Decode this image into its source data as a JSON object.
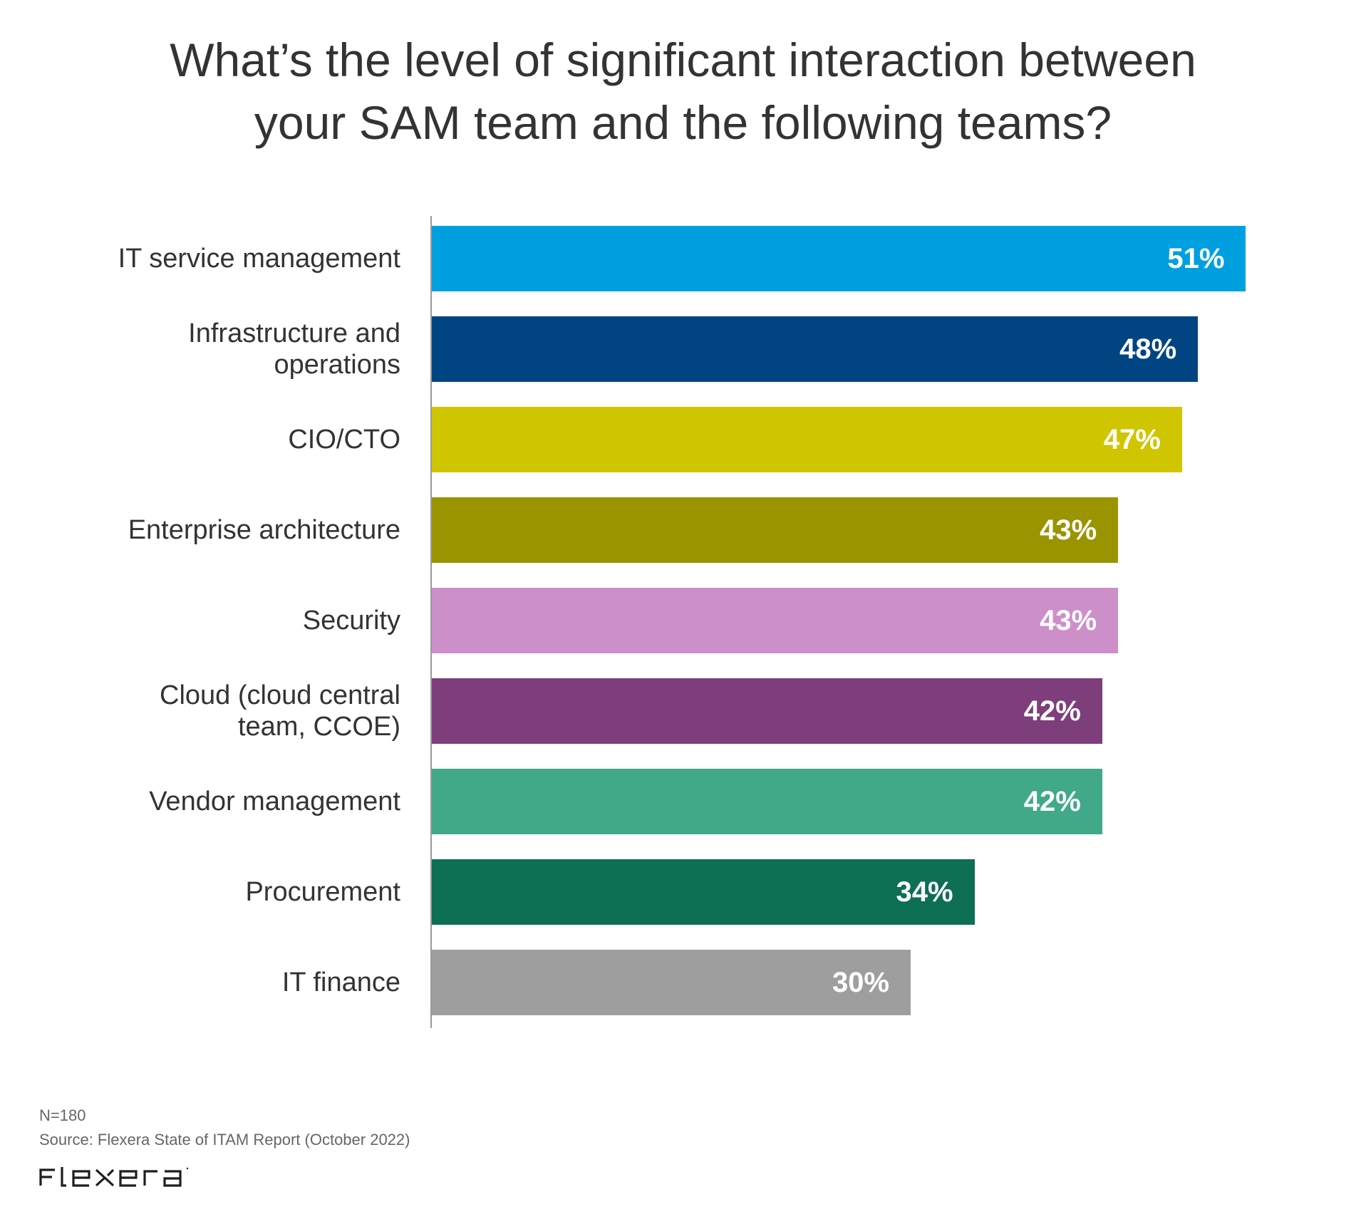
{
  "chart_data": {
    "type": "bar",
    "orientation": "horizontal",
    "title": "What’s the level of significant interaction between your SAM team and the following teams?",
    "title_lines": [
      "What’s the level of significant interaction between",
      "your SAM team and the following teams?"
    ],
    "xlabel": "",
    "ylabel": "",
    "xlim": [
      0,
      55
    ],
    "grid": false,
    "legend": "none",
    "value_suffix": "%",
    "categories": [
      {
        "label_lines": [
          "IT service management"
        ],
        "value": 51,
        "value_label": "51%",
        "color": "#00A0E0"
      },
      {
        "label_lines": [
          "Infrastructure and",
          "operations"
        ],
        "value": 48,
        "value_label": "48%",
        "color": "#004481"
      },
      {
        "label_lines": [
          "CIO/CTO"
        ],
        "value": 47,
        "value_label": "47%",
        "color": "#CFC500"
      },
      {
        "label_lines": [
          "Enterprise architecture"
        ],
        "value": 43,
        "value_label": "43%",
        "color": "#9A9400"
      },
      {
        "label_lines": [
          "Security"
        ],
        "value": 43,
        "value_label": "43%",
        "color": "#CC8FC9"
      },
      {
        "label_lines": [
          "Cloud (cloud central",
          "team, CCOE)"
        ],
        "value": 42,
        "value_label": "42%",
        "color": "#7E3E7C"
      },
      {
        "label_lines": [
          "Vendor management"
        ],
        "value": 42,
        "value_label": "42%",
        "color": "#41A88A"
      },
      {
        "label_lines": [
          "Procurement"
        ],
        "value": 34,
        "value_label": "34%",
        "color": "#0D6F53"
      },
      {
        "label_lines": [
          "IT finance"
        ],
        "value": 30,
        "value_label": "30%",
        "color": "#9E9E9E"
      }
    ]
  },
  "footer": {
    "sample_size": "N=180",
    "source": "Source: Flexera State of ITAM Report (October 2022)",
    "logo_text": "flexera"
  }
}
